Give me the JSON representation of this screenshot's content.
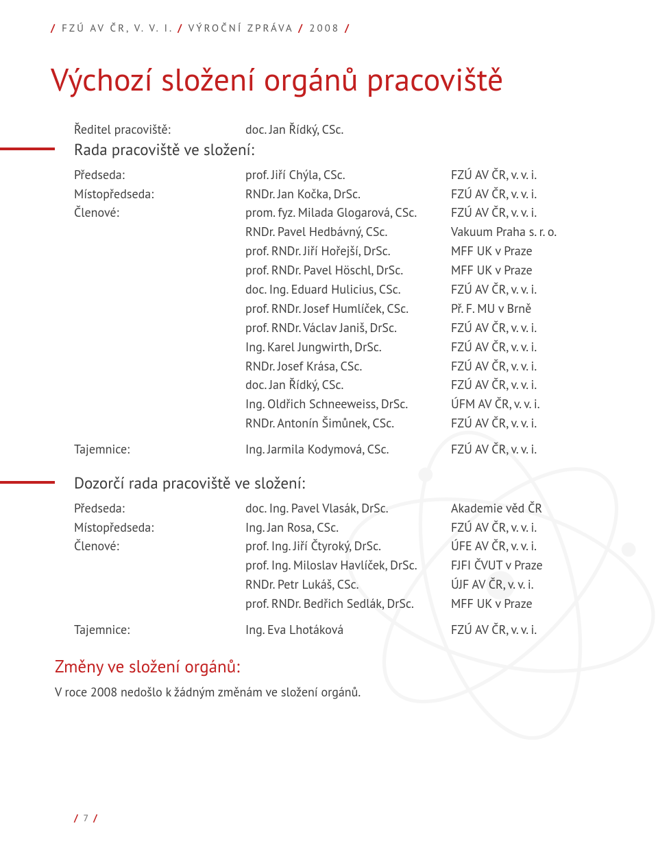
{
  "header": {
    "inst": "FZÚ AV ČR, V. V. I.",
    "report": "VÝROČNÍ ZPRÁVA",
    "year": "2008",
    "sep": "/"
  },
  "title": "Výchozí složení orgánů pracoviště",
  "director_label": "Ředitel pracoviště:",
  "director_name": "doc. Jan Řídký, CSc.",
  "section1": {
    "heading": "Rada pracoviště ve složení:",
    "chair_label": "Předseda:",
    "chair_name": "prof. Jiří Chýla, CSc.",
    "chair_inst": "FZÚ AV ČR, v. v. i.",
    "vice_label": "Místopředseda:",
    "vice_name": "RNDr. Jan Kočka, DrSc.",
    "vice_inst": "FZÚ AV ČR, v. v. i.",
    "members_label": "Členové:",
    "members": [
      {
        "name": "prom. fyz. Milada Glogarová, CSc.",
        "inst": "FZÚ AV ČR, v. v. i."
      },
      {
        "name": "RNDr. Pavel Hedbávný, CSc.",
        "inst": "Vakuum Praha s. r. o."
      },
      {
        "name": "prof. RNDr. Jiří Hořejší, DrSc.",
        "inst": "MFF UK v Praze"
      },
      {
        "name": "prof. RNDr. Pavel Höschl, DrSc.",
        "inst": "MFF UK v Praze"
      },
      {
        "name": "doc. Ing. Eduard Hulicius, CSc.",
        "inst": "FZÚ AV ČR, v. v. i."
      },
      {
        "name": "prof. RNDr. Josef Humlíček, CSc.",
        "inst": "Př. F. MU v Brně"
      },
      {
        "name": "prof. RNDr. Václav Janiš, DrSc.",
        "inst": "FZÚ AV ČR, v. v. i."
      },
      {
        "name": "Ing. Karel Jungwirth, DrSc.",
        "inst": "FZÚ AV ČR, v. v. i."
      },
      {
        "name": "RNDr. Josef Krása, CSc.",
        "inst": "FZÚ AV ČR, v. v. i."
      },
      {
        "name": "doc. Jan Řídký, CSc.",
        "inst": "FZÚ AV ČR, v. v. i."
      },
      {
        "name": "Ing. Oldřich Schneeweiss, DrSc.",
        "inst": "ÚFM AV ČR, v. v. i."
      },
      {
        "name": "RNDr. Antonín Šimůnek, CSc.",
        "inst": "FZÚ AV ČR, v. v. i."
      }
    ],
    "secretary_label": "Tajemnice:",
    "secretary_name": "Ing. Jarmila Kodymová, CSc.",
    "secretary_inst": "FZÚ AV ČR, v. v. i."
  },
  "section2": {
    "heading": "Dozorčí rada pracoviště ve složení:",
    "chair_label": "Předseda:",
    "chair_name": "doc. Ing. Pavel Vlasák, DrSc.",
    "chair_inst": "Akademie věd ČR",
    "vice_label": "Místopředseda:",
    "vice_name": "Ing. Jan Rosa, CSc.",
    "vice_inst": "FZÚ AV ČR, v. v. i.",
    "members_label": "Členové:",
    "members": [
      {
        "name": "prof. Ing. Jiří Čtyroký, DrSc.",
        "inst": "ÚFE AV ČR, v. v. i."
      },
      {
        "name": "prof. Ing. Miloslav Havlíček, DrSc.",
        "inst": "FJFI ČVUT v Praze"
      },
      {
        "name": "RNDr. Petr Lukáš, CSc.",
        "inst": "ÚJF AV ČR, v. v. i."
      },
      {
        "name": "prof. RNDr. Bedřich Sedlák, DrSc.",
        "inst": "MFF UK v Praze"
      }
    ],
    "secretary_label": "Tajemnice:",
    "secretary_name": "Ing. Eva Lhotáková",
    "secretary_inst": "FZÚ AV ČR, v. v. i."
  },
  "changes": {
    "heading": "Změny ve složení orgánů:",
    "text": "V roce 2008 nedošlo k žádným změnám ve složení orgánů."
  },
  "footer": {
    "page": "7",
    "sep": "/"
  },
  "colors": {
    "accent": "#c21f1f",
    "text": "#3e3e3e",
    "watermark": "#d4d4d4"
  }
}
